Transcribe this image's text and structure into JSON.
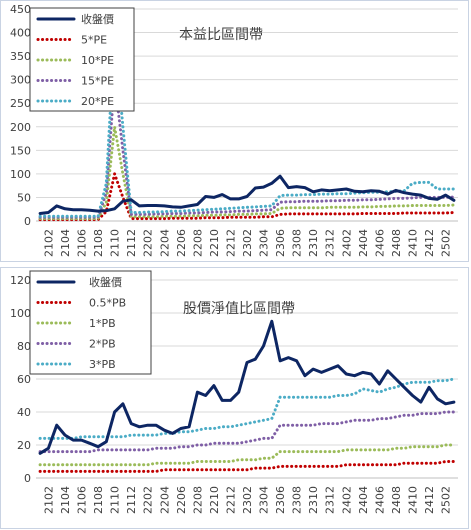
{
  "colors": {
    "close": "#0d2663",
    "pe5": "#c00000",
    "pe10": "#9bbb59",
    "pe15": "#7f5fa6",
    "pe20": "#4bacc6",
    "pb05": "#c00000",
    "pb1": "#9bbb59",
    "pb2": "#7f5fa6",
    "pb3": "#4bacc6",
    "grid": "#d9d9d9",
    "text": "#404040"
  },
  "chart_data": [
    {
      "type": "line",
      "title": "本益比區間帶",
      "ylim": [
        0,
        450
      ],
      "yticks": [
        "0",
        "50",
        "100",
        "150",
        "200",
        "250",
        "300",
        "350",
        "400",
        "450"
      ],
      "categories": [
        "2101",
        "2102",
        "2103",
        "2104",
        "2105",
        "2106",
        "2107",
        "2108",
        "2109",
        "2110",
        "2111",
        "2112",
        "2201",
        "2202",
        "2203",
        "2204",
        "2205",
        "2206",
        "2207",
        "2208",
        "2209",
        "2210",
        "2211",
        "2212",
        "2301",
        "2302",
        "2303",
        "2304",
        "2305",
        "2306",
        "2307",
        "2308",
        "2309",
        "2310",
        "2311",
        "2312",
        "2401",
        "2402",
        "2403",
        "2404",
        "2405",
        "2406",
        "2407",
        "2408",
        "2409",
        "2410",
        "2411",
        "2412",
        "2501",
        "2502",
        "2503"
      ],
      "xtick_labels": [
        "2102",
        "2104",
        "2106",
        "2108",
        "2110",
        "2112",
        "2202",
        "2204",
        "2206",
        "2208",
        "2210",
        "2212",
        "2302",
        "2304",
        "2306",
        "2308",
        "2310",
        "2312",
        "2402",
        "2404",
        "2406",
        "2408",
        "2410",
        "2412",
        "2502"
      ],
      "grid": true,
      "legend_position": "top-left",
      "series": [
        {
          "name": "收盤價",
          "color_key": "close",
          "style": "solid",
          "values": [
            16,
            18,
            32,
            26,
            24,
            24,
            23,
            21,
            22,
            26,
            42,
            45,
            32,
            33,
            33,
            32,
            30,
            29,
            32,
            35,
            52,
            50,
            56,
            47,
            47,
            52,
            70,
            72,
            80,
            95,
            71,
            73,
            71,
            62,
            66,
            64,
            66,
            68,
            63,
            62,
            64,
            63,
            57,
            65,
            60,
            57,
            55,
            48,
            46,
            55,
            44
          ]
        },
        {
          "name": "5*PE",
          "color_key": "pe5",
          "style": "dot",
          "values": [
            3,
            3,
            3,
            3,
            3,
            3,
            3,
            3,
            20,
            100,
            50,
            5,
            5,
            5,
            5,
            5,
            6,
            6,
            6,
            6,
            7,
            7,
            7,
            8,
            8,
            8,
            8,
            9,
            9,
            14,
            15,
            15,
            15,
            15,
            15,
            15,
            15,
            15,
            15,
            16,
            16,
            16,
            16,
            16,
            17,
            17,
            17,
            17,
            17,
            17,
            18
          ]
        },
        {
          "name": "10*PE",
          "color_key": "pe10",
          "style": "dot",
          "values": [
            5,
            5,
            5,
            5,
            5,
            5,
            5,
            5,
            40,
            200,
            100,
            9,
            9,
            9,
            9,
            10,
            10,
            10,
            11,
            11,
            12,
            12,
            13,
            13,
            14,
            14,
            15,
            15,
            16,
            27,
            28,
            28,
            28,
            28,
            28,
            29,
            29,
            29,
            29,
            30,
            30,
            31,
            31,
            32,
            32,
            33,
            33,
            33,
            33,
            33,
            34
          ]
        },
        {
          "name": "15*PE",
          "color_key": "pe15",
          "style": "dot",
          "values": [
            8,
            8,
            8,
            8,
            8,
            8,
            8,
            8,
            60,
            300,
            150,
            14,
            14,
            14,
            15,
            15,
            16,
            16,
            17,
            17,
            18,
            19,
            19,
            20,
            21,
            21,
            22,
            23,
            24,
            40,
            41,
            41,
            42,
            42,
            42,
            43,
            43,
            44,
            44,
            45,
            45,
            46,
            47,
            48,
            48,
            49,
            50,
            50,
            50,
            50,
            51
          ]
        },
        {
          "name": "20*PE",
          "color_key": "pe20",
          "style": "dot",
          "values": [
            10,
            10,
            10,
            10,
            10,
            10,
            10,
            10,
            80,
            400,
            200,
            18,
            18,
            19,
            19,
            20,
            21,
            21,
            22,
            23,
            24,
            25,
            26,
            27,
            28,
            29,
            30,
            31,
            32,
            54,
            55,
            55,
            56,
            56,
            57,
            57,
            58,
            58,
            59,
            60,
            61,
            61,
            62,
            63,
            64,
            80,
            82,
            82,
            68,
            68,
            68
          ]
        }
      ]
    },
    {
      "type": "line",
      "title": "股價淨值比區間帶",
      "ylim": [
        0,
        120
      ],
      "yticks": [
        "0",
        "20",
        "40",
        "60",
        "80",
        "100",
        "120"
      ],
      "categories": [
        "2101",
        "2102",
        "2103",
        "2104",
        "2105",
        "2106",
        "2107",
        "2108",
        "2109",
        "2110",
        "2111",
        "2112",
        "2201",
        "2202",
        "2203",
        "2204",
        "2205",
        "2206",
        "2207",
        "2208",
        "2209",
        "2210",
        "2211",
        "2212",
        "2301",
        "2302",
        "2303",
        "2304",
        "2305",
        "2306",
        "2307",
        "2308",
        "2309",
        "2310",
        "2311",
        "2312",
        "2401",
        "2402",
        "2403",
        "2404",
        "2405",
        "2406",
        "2407",
        "2408",
        "2409",
        "2410",
        "2411",
        "2412",
        "2501",
        "2502",
        "2503"
      ],
      "xtick_labels": [
        "2102",
        "2104",
        "2106",
        "2108",
        "2110",
        "2112",
        "2202",
        "2204",
        "2206",
        "2208",
        "2210",
        "2212",
        "2302",
        "2304",
        "2306",
        "2308",
        "2310",
        "2312",
        "2402",
        "2404",
        "2406",
        "2408",
        "2410",
        "2412",
        "2502"
      ],
      "grid": true,
      "legend_position": "top-left",
      "series": [
        {
          "name": "收盤價",
          "color_key": "close",
          "style": "solid",
          "values": [
            15,
            18,
            32,
            26,
            23,
            23,
            21,
            19,
            22,
            40,
            45,
            33,
            31,
            32,
            32,
            29,
            27,
            30,
            31,
            52,
            50,
            56,
            47,
            47,
            52,
            70,
            72,
            80,
            95,
            71,
            73,
            71,
            62,
            66,
            64,
            66,
            68,
            63,
            62,
            64,
            63,
            57,
            65,
            60,
            55,
            50,
            46,
            55,
            48,
            45,
            46
          ]
        },
        {
          "name": "0.5*PB",
          "color_key": "pb05",
          "style": "dot",
          "values": [
            4,
            4,
            4,
            4,
            4,
            4,
            4,
            4,
            4,
            4,
            4,
            4,
            4,
            4,
            4,
            5,
            5,
            5,
            5,
            5,
            5,
            5,
            5,
            5,
            5,
            5,
            6,
            6,
            6,
            7,
            7,
            7,
            7,
            7,
            7,
            7,
            7,
            8,
            8,
            8,
            8,
            8,
            8,
            8,
            9,
            9,
            9,
            9,
            9,
            10,
            10
          ]
        },
        {
          "name": "1*PB",
          "color_key": "pb1",
          "style": "dot",
          "values": [
            8,
            8,
            8,
            8,
            8,
            8,
            8,
            8,
            8,
            8,
            8,
            8,
            8,
            8,
            9,
            9,
            9,
            9,
            9,
            10,
            10,
            10,
            10,
            10,
            11,
            11,
            11,
            12,
            12,
            16,
            16,
            16,
            16,
            16,
            16,
            16,
            16,
            17,
            17,
            17,
            17,
            17,
            17,
            18,
            18,
            19,
            19,
            19,
            19,
            20,
            20
          ]
        },
        {
          "name": "2*PB",
          "color_key": "pb2",
          "style": "dot",
          "values": [
            16,
            16,
            16,
            16,
            16,
            16,
            16,
            17,
            17,
            17,
            17,
            17,
            17,
            17,
            18,
            18,
            18,
            19,
            19,
            20,
            20,
            21,
            21,
            21,
            21,
            22,
            23,
            24,
            24,
            32,
            32,
            32,
            32,
            32,
            33,
            33,
            33,
            34,
            35,
            35,
            35,
            36,
            36,
            37,
            38,
            38,
            39,
            39,
            39,
            40,
            40
          ]
        },
        {
          "name": "3*PB",
          "color_key": "pb3",
          "style": "dot",
          "values": [
            24,
            24,
            24,
            24,
            24,
            25,
            25,
            25,
            25,
            25,
            25,
            26,
            26,
            26,
            26,
            27,
            27,
            28,
            28,
            29,
            30,
            30,
            31,
            31,
            32,
            33,
            34,
            35,
            36,
            49,
            49,
            49,
            49,
            49,
            49,
            49,
            50,
            50,
            51,
            54,
            53,
            52,
            54,
            55,
            57,
            58,
            58,
            58,
            59,
            59,
            60
          ]
        }
      ]
    }
  ]
}
